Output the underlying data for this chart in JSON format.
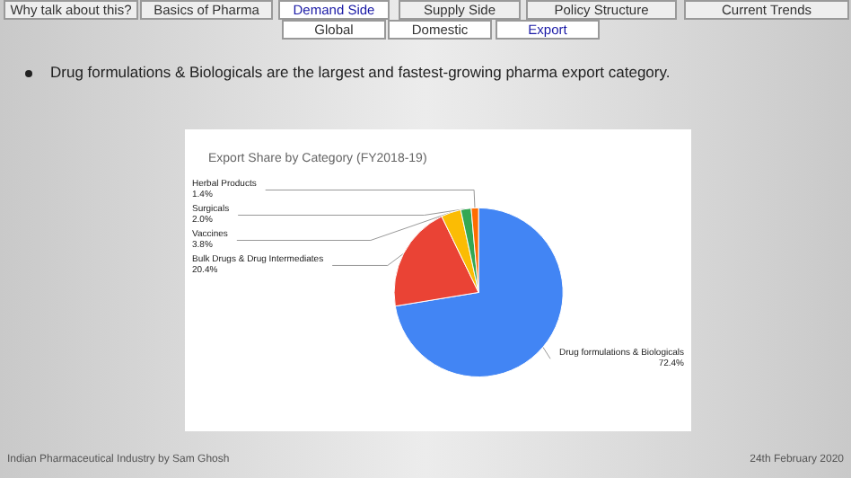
{
  "chart_data": {
    "type": "pie",
    "title": "Export Share by Category (FY2018-19)",
    "categories": [
      "Drug formulations & Biologicals",
      "Bulk Drugs & Drug Intermediates",
      "Vaccines",
      "Surgicals",
      "Herbal Products"
    ],
    "values": [
      72.4,
      20.4,
      3.8,
      2.0,
      1.4
    ],
    "value_labels": [
      "72.4%",
      "20.4%",
      "3.8%",
      "2.0%",
      "1.4%"
    ],
    "colors": [
      "#4285f4",
      "#ea4335",
      "#fbbc04",
      "#34a853",
      "#ff6d01"
    ],
    "legend": false,
    "annotations": [
      "Why talk about this?",
      "Basics of Pharma",
      "Demand Side",
      "Supply Side",
      "Policy Structure",
      "Current Trends",
      "Global",
      "Domestic",
      "Export",
      "Drug formulations & Biologicals are the largest and fastest-growing pharma export category.",
      "Indian Pharmaceutical Industry by Sam Ghosh",
      "24th February 2020"
    ]
  }
}
